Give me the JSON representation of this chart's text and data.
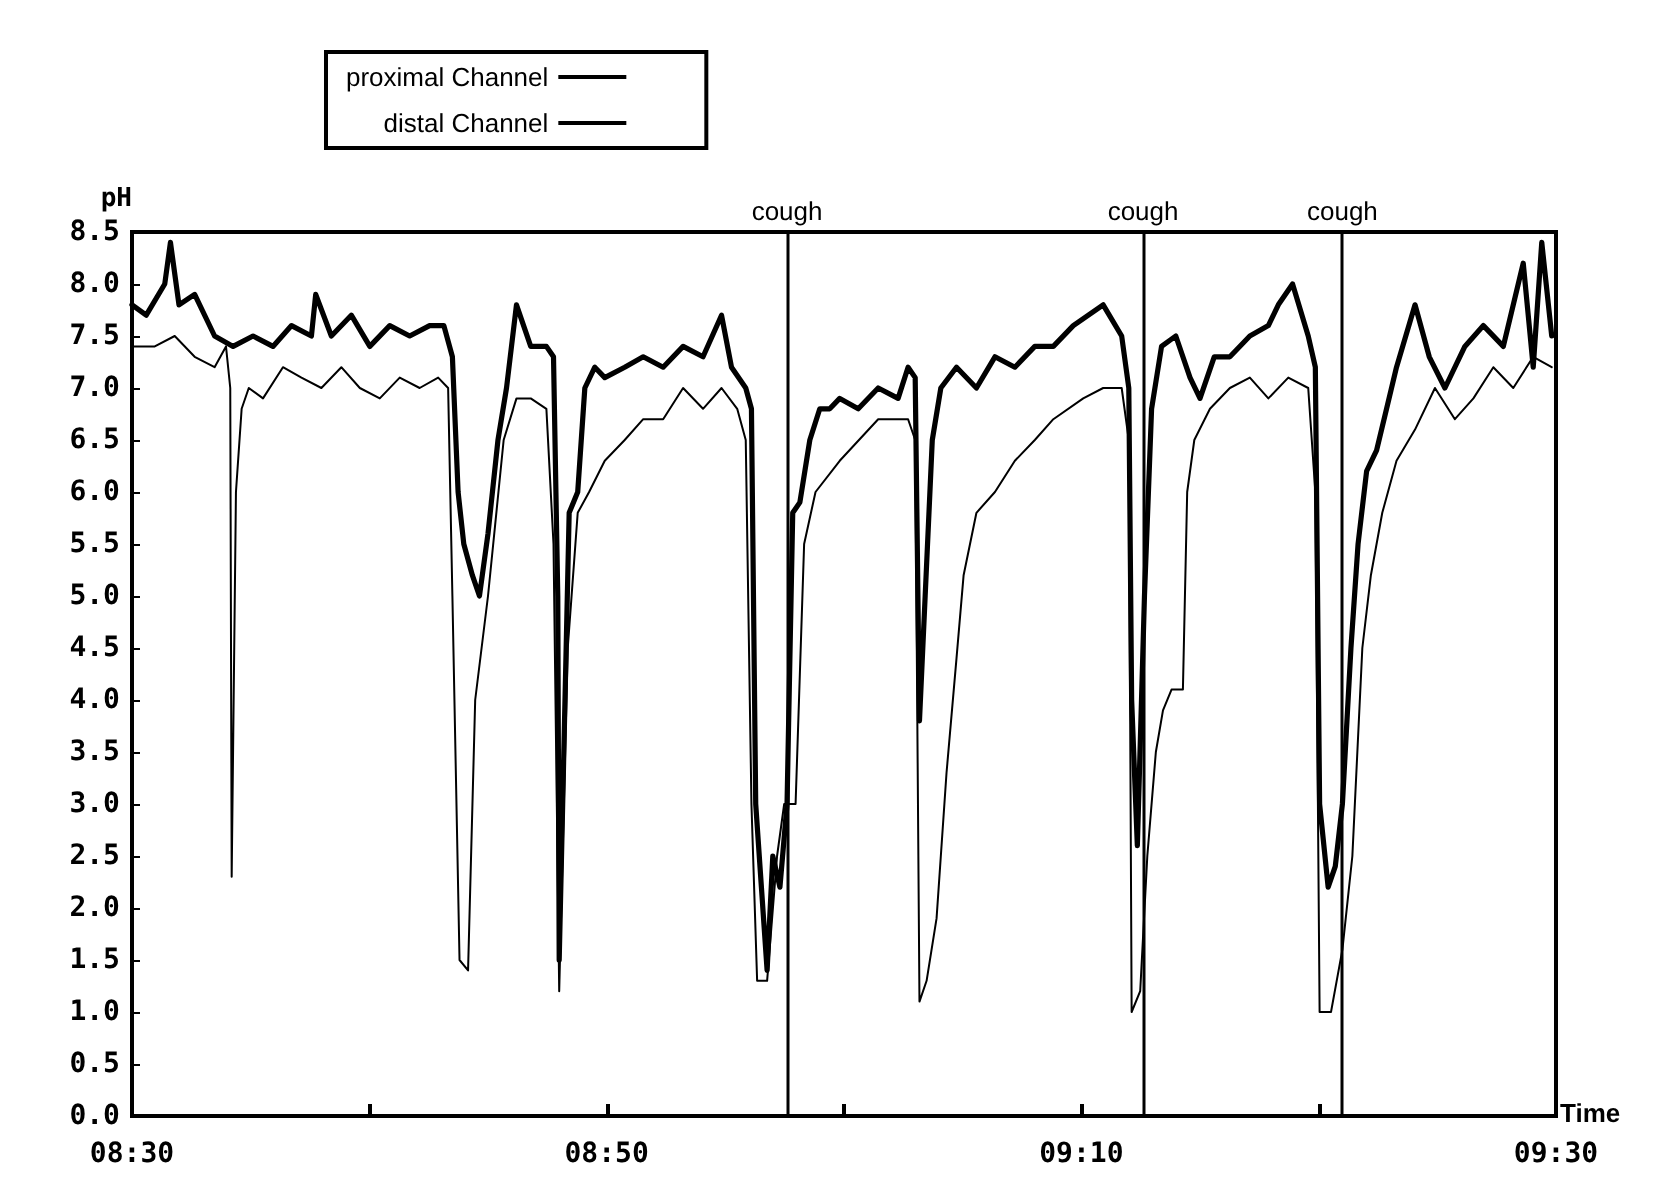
{
  "chart_data": {
    "type": "line",
    "xlabel": "Time",
    "ylabel": "pH",
    "xlim": [
      8.5,
      9.5
    ],
    "ylim": [
      0,
      8.5
    ],
    "xticks": [
      {
        "value": 8.5,
        "label": "08:30"
      },
      {
        "value": 8.6667,
        "label": null
      },
      {
        "value": 8.8333,
        "label": "08:50"
      },
      {
        "value": 9,
        "label": null
      },
      {
        "value": 9.1667,
        "label": "09:10"
      },
      {
        "value": 9.3333,
        "label": null
      },
      {
        "value": 9.5,
        "label": "09:30"
      }
    ],
    "yticks": [
      {
        "value": 0,
        "label": "0.0"
      },
      {
        "value": 0.5,
        "label": "0.5"
      },
      {
        "value": 1,
        "label": "1.0"
      },
      {
        "value": 1.5,
        "label": "1.5"
      },
      {
        "value": 2,
        "label": "2.0"
      },
      {
        "value": 2.5,
        "label": "2.5"
      },
      {
        "value": 3,
        "label": "3.0"
      },
      {
        "value": 3.5,
        "label": "3.5"
      },
      {
        "value": 4,
        "label": "4.0"
      },
      {
        "value": 4.5,
        "label": "4.5"
      },
      {
        "value": 5,
        "label": "5.0"
      },
      {
        "value": 5.5,
        "label": "5.5"
      },
      {
        "value": 6,
        "label": "6.0"
      },
      {
        "value": 6.5,
        "label": "6.5"
      },
      {
        "value": 7,
        "label": "7.0"
      },
      {
        "value": 7.5,
        "label": "7.5"
      },
      {
        "value": 8,
        "label": "8.0"
      },
      {
        "value": 8.5,
        "label": "8.5"
      }
    ],
    "legend": "top",
    "marker": "none",
    "line_style": "solid",
    "ref_lines": [
      {
        "axis": "x",
        "value": 8.957,
        "label": "cough"
      },
      {
        "axis": "x",
        "value": 9.213,
        "label": "cough"
      },
      {
        "axis": "x",
        "value": 9.35,
        "label": "cough"
      }
    ],
    "series": [
      {
        "name": "proximal Channel",
        "color": "#000000",
        "x": [
          8.5,
          8.51,
          8.523,
          8.527,
          8.533,
          8.544,
          8.558,
          8.571,
          8.585,
          8.599,
          8.612,
          8.626,
          8.629,
          8.64,
          8.654,
          8.667,
          8.681,
          8.695,
          8.709,
          8.719,
          8.725,
          8.729,
          8.733,
          8.739,
          8.744,
          8.75,
          8.757,
          8.763,
          8.77,
          8.78,
          8.791,
          8.796,
          8.799,
          8.8,
          8.807,
          8.813,
          8.818,
          8.825,
          8.832,
          8.846,
          8.859,
          8.873,
          8.887,
          8.901,
          8.914,
          8.921,
          8.931,
          8.935,
          8.938,
          8.942,
          8.946,
          8.95,
          8.955,
          8.96,
          8.964,
          8.969,
          8.976,
          8.983,
          8.99,
          8.997,
          9.01,
          9.024,
          9.038,
          9.045,
          9.05,
          9.053,
          9.057,
          9.062,
          9.068,
          9.079,
          9.093,
          9.106,
          9.12,
          9.134,
          9.147,
          9.161,
          9.182,
          9.195,
          9.2,
          9.202,
          9.206,
          9.211,
          9.216,
          9.223,
          9.233,
          9.243,
          9.25,
          9.26,
          9.271,
          9.285,
          9.298,
          9.305,
          9.315,
          9.326,
          9.331,
          9.334,
          9.34,
          9.345,
          9.35,
          9.356,
          9.361,
          9.367,
          9.374,
          9.381,
          9.388,
          9.401,
          9.411,
          9.422,
          9.436,
          9.449,
          9.463,
          9.477,
          9.484,
          9.49,
          9.497
        ],
        "values": [
          7.8,
          7.7,
          8.0,
          8.4,
          7.8,
          7.9,
          7.5,
          7.4,
          7.5,
          7.4,
          7.6,
          7.5,
          7.9,
          7.5,
          7.7,
          7.4,
          7.6,
          7.5,
          7.6,
          7.6,
          7.3,
          6.0,
          5.5,
          5.2,
          5.0,
          5.6,
          6.5,
          7.0,
          7.8,
          7.4,
          7.4,
          7.3,
          5.0,
          1.5,
          5.8,
          6.0,
          7.0,
          7.2,
          7.1,
          7.2,
          7.3,
          7.2,
          7.4,
          7.3,
          7.7,
          7.2,
          7.0,
          6.8,
          3.0,
          2.2,
          1.4,
          2.5,
          2.2,
          3.0,
          5.8,
          5.9,
          6.5,
          6.8,
          6.8,
          6.9,
          6.8,
          7.0,
          6.9,
          7.2,
          7.1,
          3.8,
          5.0,
          6.5,
          7.0,
          7.2,
          7.0,
          7.3,
          7.2,
          7.4,
          7.4,
          7.6,
          7.8,
          7.5,
          7.0,
          4.0,
          2.6,
          5.0,
          6.8,
          7.4,
          7.5,
          7.1,
          6.9,
          7.3,
          7.3,
          7.5,
          7.6,
          7.8,
          8.0,
          7.5,
          7.2,
          3.0,
          2.2,
          2.4,
          3.0,
          4.5,
          5.5,
          6.2,
          6.4,
          6.8,
          7.2,
          7.8,
          7.3,
          7.0,
          7.4,
          7.6,
          7.4,
          8.2,
          7.2,
          8.4,
          7.5
        ]
      },
      {
        "name": "distal Channel",
        "color": "#000000",
        "x": [
          8.5,
          8.516,
          8.53,
          8.544,
          8.558,
          8.566,
          8.569,
          8.57,
          8.573,
          8.577,
          8.582,
          8.592,
          8.606,
          8.619,
          8.633,
          8.647,
          8.66,
          8.674,
          8.688,
          8.702,
          8.715,
          8.722,
          8.725,
          8.73,
          8.736,
          8.741,
          8.75,
          8.761,
          8.77,
          8.78,
          8.791,
          8.796,
          8.8,
          8.806,
          8.813,
          8.821,
          8.832,
          8.846,
          8.859,
          8.873,
          8.887,
          8.901,
          8.914,
          8.925,
          8.931,
          8.935,
          8.939,
          8.946,
          8.953,
          8.958,
          8.966,
          8.972,
          8.98,
          8.997,
          9.024,
          9.045,
          9.05,
          9.053,
          9.058,
          9.065,
          9.072,
          9.079,
          9.084,
          9.093,
          9.106,
          9.12,
          9.134,
          9.147,
          9.168,
          9.182,
          9.195,
          9.2,
          9.202,
          9.208,
          9.213,
          9.219,
          9.224,
          9.23,
          9.238,
          9.241,
          9.246,
          9.257,
          9.271,
          9.285,
          9.298,
          9.312,
          9.326,
          9.331,
          9.334,
          9.342,
          9.35,
          9.357,
          9.364,
          9.37,
          9.378,
          9.388,
          9.401,
          9.415,
          9.429,
          9.442,
          9.456,
          9.47,
          9.484,
          9.497
        ],
        "values": [
          7.4,
          7.4,
          7.5,
          7.3,
          7.2,
          7.4,
          7.0,
          2.3,
          6.0,
          6.8,
          7.0,
          6.9,
          7.2,
          7.1,
          7.0,
          7.2,
          7.0,
          6.9,
          7.1,
          7.0,
          7.1,
          7.0,
          5.0,
          1.5,
          1.4,
          4.0,
          5.0,
          6.5,
          6.9,
          6.9,
          6.8,
          5.5,
          1.2,
          4.5,
          5.8,
          6.0,
          6.3,
          6.5,
          6.7,
          6.7,
          7.0,
          6.8,
          7.0,
          6.8,
          6.5,
          3.0,
          1.3,
          1.3,
          2.5,
          3.0,
          3.0,
          5.5,
          6.0,
          6.3,
          6.7,
          6.7,
          6.5,
          1.1,
          1.3,
          1.9,
          3.3,
          4.4,
          5.2,
          5.8,
          6.0,
          6.3,
          6.5,
          6.7,
          6.9,
          7.0,
          7.0,
          6.5,
          1.0,
          1.2,
          2.5,
          3.5,
          3.9,
          4.1,
          4.1,
          6.0,
          6.5,
          6.8,
          7.0,
          7.1,
          6.9,
          7.1,
          7.0,
          6.0,
          1.0,
          1.0,
          1.6,
          2.5,
          4.5,
          5.2,
          5.8,
          6.3,
          6.6,
          7.0,
          6.7,
          6.9,
          7.2,
          7.0,
          7.3,
          7.2
        ]
      }
    ]
  }
}
